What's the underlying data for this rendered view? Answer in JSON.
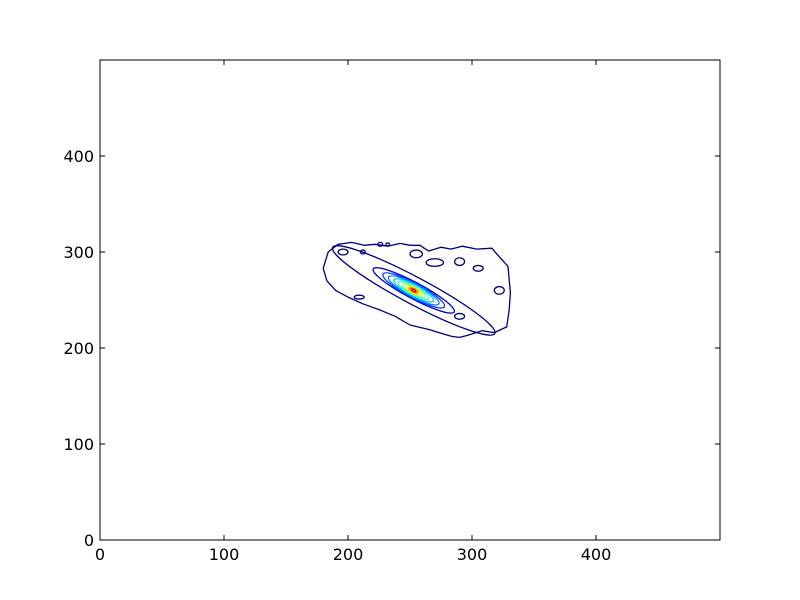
{
  "chart_data": {
    "type": "contour",
    "title": "",
    "xlabel": "",
    "ylabel": "",
    "xlim": [
      0,
      500
    ],
    "ylim": [
      0,
      500
    ],
    "xticks": [
      0,
      100,
      200,
      300,
      400
    ],
    "yticks": [
      0,
      100,
      200,
      300,
      400
    ],
    "xtick_labels": [
      "0",
      "100",
      "200",
      "300",
      "400"
    ],
    "ytick_labels": [
      "0",
      "100",
      "200",
      "300",
      "400"
    ],
    "grid": false,
    "colormap": "jet",
    "contours": {
      "center": [
        253,
        260
      ],
      "angle_deg": -28,
      "levels": [
        {
          "color": "#00007f",
          "rx": 74,
          "ry": 14
        },
        {
          "color": "#0000d6",
          "rx": 37,
          "ry": 8.5
        },
        {
          "color": "#0038ff",
          "rx": 28,
          "ry": 7.6
        },
        {
          "color": "#0080ff",
          "rx": 23,
          "ry": 6.7
        },
        {
          "color": "#00c4ff",
          "rx": 18,
          "ry": 5.8
        },
        {
          "color": "#29ffce",
          "rx": 14,
          "ry": 4.8
        },
        {
          "color": "#7dff7a",
          "rx": 10.5,
          "ry": 3.9
        },
        {
          "color": "#ceff29",
          "rx": 7.5,
          "ry": 3.0
        },
        {
          "color": "#ffc400",
          "rx": 5,
          "ry": 2.2
        },
        {
          "color": "#ff6d00",
          "rx": 3.2,
          "ry": 1.5
        },
        {
          "color": "#e60000",
          "rx": 1.8,
          "ry": 1.0
        }
      ],
      "outer_boundary": [
        [
          180,
          283
        ],
        [
          184,
          300
        ],
        [
          192,
          308
        ],
        [
          203,
          310
        ],
        [
          213,
          307
        ],
        [
          222,
          308
        ],
        [
          232,
          306
        ],
        [
          242,
          309
        ],
        [
          250,
          307
        ],
        [
          258,
          307
        ],
        [
          265,
          301
        ],
        [
          275,
          305
        ],
        [
          283,
          303
        ],
        [
          292,
          306
        ],
        [
          304,
          303
        ],
        [
          316,
          304
        ],
        [
          322,
          295
        ],
        [
          329,
          285
        ],
        [
          330,
          271
        ],
        [
          331,
          258
        ],
        [
          330,
          240
        ],
        [
          328,
          222
        ],
        [
          318,
          216
        ],
        [
          308,
          218
        ],
        [
          296,
          213
        ],
        [
          290,
          211
        ],
        [
          284,
          212
        ],
        [
          276,
          215
        ],
        [
          266,
          219
        ],
        [
          250,
          224
        ],
        [
          238,
          233
        ],
        [
          225,
          240
        ],
        [
          212,
          246
        ],
        [
          200,
          253
        ],
        [
          190,
          260
        ],
        [
          183,
          270
        ]
      ],
      "islands": [
        {
          "cx": 196,
          "cy": 300,
          "rx": 4,
          "ry": 3,
          "color": "#00007f"
        },
        {
          "cx": 209,
          "cy": 253,
          "rx": 4,
          "ry": 2,
          "color": "#00007f"
        },
        {
          "cx": 212,
          "cy": 300,
          "rx": 2,
          "ry": 2,
          "color": "#00007f"
        },
        {
          "cx": 226,
          "cy": 308,
          "rx": 2,
          "ry": 2,
          "color": "#00007f"
        },
        {
          "cx": 255,
          "cy": 298,
          "rx": 5,
          "ry": 4,
          "color": "#00007f"
        },
        {
          "cx": 270,
          "cy": 289,
          "rx": 7,
          "ry": 4,
          "color": "#00007f"
        },
        {
          "cx": 290,
          "cy": 290,
          "rx": 4,
          "ry": 4,
          "color": "#00007f"
        },
        {
          "cx": 305,
          "cy": 283,
          "rx": 4,
          "ry": 3,
          "color": "#00007f"
        },
        {
          "cx": 322,
          "cy": 260,
          "rx": 4,
          "ry": 4,
          "color": "#00007f"
        },
        {
          "cx": 290,
          "cy": 233,
          "rx": 4,
          "ry": 3,
          "color": "#00007f"
        },
        {
          "cx": 232,
          "cy": 308,
          "rx": 1.5,
          "ry": 1.5,
          "color": "#00007f"
        }
      ]
    }
  }
}
